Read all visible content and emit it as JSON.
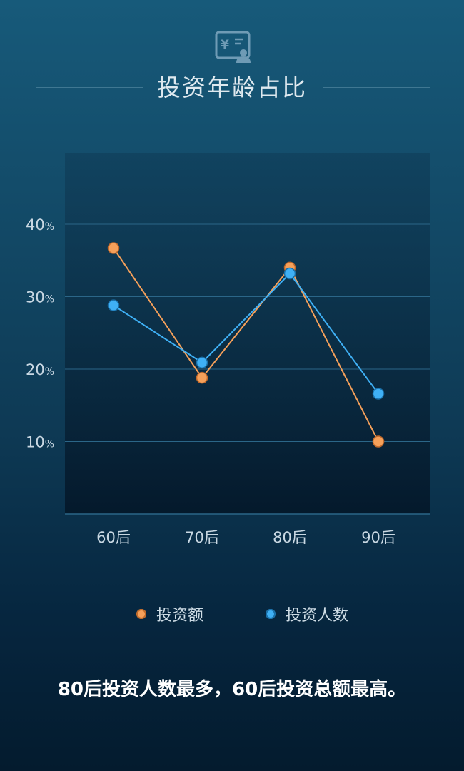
{
  "header": {
    "icon": "yuan-document-person-icon",
    "title": "投资年龄占比"
  },
  "colors": {
    "amount": "#f5a05a",
    "people": "#3fb0f5",
    "grid": "#2b6688",
    "axis_text": "#c9d8e3"
  },
  "chart_data": {
    "type": "line",
    "title": "投资年龄占比",
    "categories": [
      "60后",
      "70后",
      "80后",
      "90后"
    ],
    "series": [
      {
        "name": "投资额",
        "values": [
          36.7,
          18.8,
          34.0,
          10.0
        ],
        "color": "#f5a05a"
      },
      {
        "name": "投资人数",
        "values": [
          28.8,
          20.9,
          33.2,
          16.6
        ],
        "color": "#3fb0f5"
      }
    ],
    "yticks": [
      {
        "value": 10,
        "label": "10",
        "unit": "%"
      },
      {
        "value": 20,
        "label": "20",
        "unit": "%"
      },
      {
        "value": 30,
        "label": "30",
        "unit": "%"
      },
      {
        "value": 40,
        "label": "40",
        "unit": "%"
      }
    ],
    "ylim": [
      0,
      50
    ],
    "grid": true,
    "legend_position": "bottom"
  },
  "legend": {
    "items": [
      {
        "label": "投资额"
      },
      {
        "label": "投资人数"
      }
    ]
  },
  "conclusion": "80后投资人数最多，60后投资总额最高。"
}
